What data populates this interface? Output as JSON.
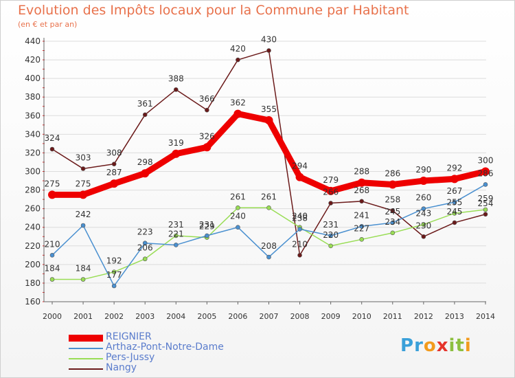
{
  "header": {
    "title": "Evolution des Impôts locaux pour la Commune par Habitant",
    "subtitle": "(en € et par an)"
  },
  "logo": {
    "letters": [
      "P",
      "r",
      "o",
      "x",
      "i",
      "t",
      "i"
    ]
  },
  "chart_data": {
    "type": "line",
    "title": "Evolution des Impôts locaux pour la Commune par Habitant",
    "subtitle": "(en € et par an)",
    "xlabel": "",
    "ylabel": "",
    "categories": [
      "2000",
      "2001",
      "2002",
      "2003",
      "2004",
      "2005",
      "2006",
      "2007",
      "2008",
      "2009",
      "2010",
      "2011",
      "2012",
      "2013",
      "2014"
    ],
    "ylim": [
      160,
      440
    ],
    "yticks": [
      160,
      180,
      200,
      220,
      240,
      260,
      280,
      300,
      320,
      340,
      360,
      380,
      400,
      420,
      440
    ],
    "grid": true,
    "legend_position": "bottom-left",
    "series": [
      {
        "name": "REIGNIER",
        "color": "#ee0000",
        "thick": true,
        "values": [
          275,
          275,
          287,
          298,
          319,
          326,
          362,
          355,
          294,
          279,
          288,
          286,
          290,
          292,
          300
        ]
      },
      {
        "name": "Arthaz-Pont-Notre-Dame",
        "color": "#4a90d0",
        "thick": false,
        "values": [
          210,
          242,
          177,
          223,
          221,
          231,
          240,
          208,
          238,
          231,
          241,
          245,
          260,
          267,
          286
        ]
      },
      {
        "name": "Pers-Jussy",
        "color": "#99dd55",
        "thick": false,
        "values": [
          184,
          184,
          192,
          206,
          231,
          229,
          261,
          261,
          240,
          220,
          227,
          234,
          243,
          255,
          259
        ]
      },
      {
        "name": "Nangy",
        "color": "#6b1a1a",
        "thick": false,
        "values": [
          324,
          303,
          308,
          361,
          388,
          366,
          420,
          430,
          210,
          266,
          268,
          258,
          230,
          245,
          254
        ]
      }
    ]
  }
}
